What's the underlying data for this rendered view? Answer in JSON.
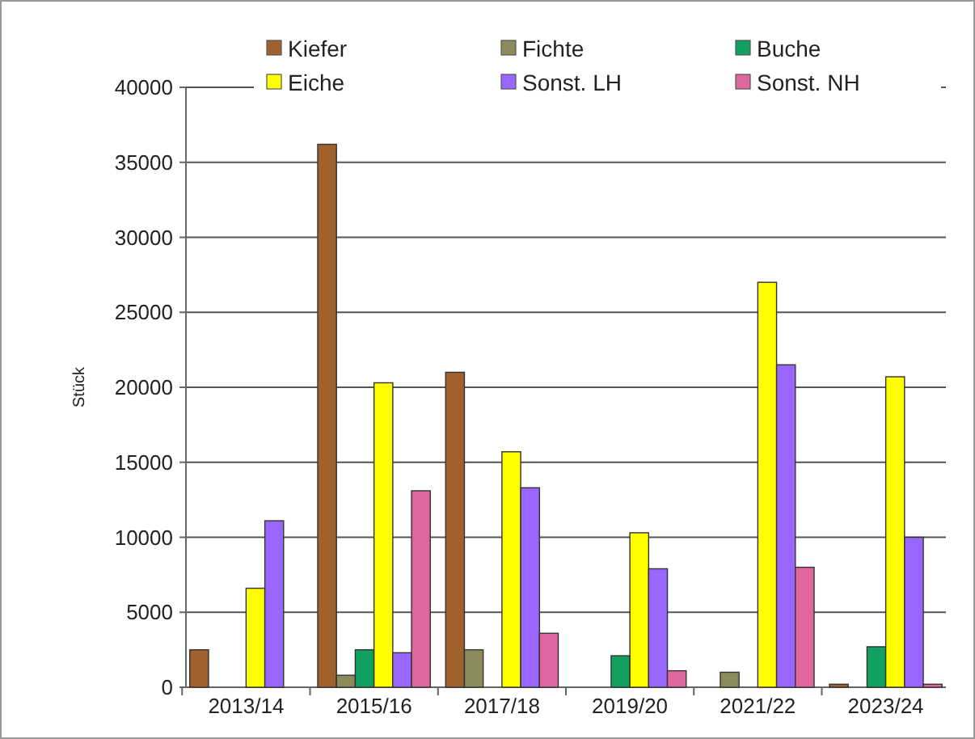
{
  "chart_data": {
    "type": "bar",
    "ylabel": "Stück",
    "categories": [
      "2013/14",
      "2015/16",
      "2017/18",
      "2019/20",
      "2021/22",
      "2023/24"
    ],
    "series": [
      {
        "name": "Kiefer",
        "color": "#a0612d",
        "values": [
          2500,
          36200,
          21000,
          0,
          0,
          200
        ]
      },
      {
        "name": "Fichte",
        "color": "#8c8a5a",
        "values": [
          0,
          800,
          2500,
          0,
          1000,
          0
        ]
      },
      {
        "name": "Buche",
        "color": "#12a060",
        "values": [
          0,
          2500,
          0,
          2100,
          0,
          2700
        ]
      },
      {
        "name": "Eiche",
        "color": "#ffff00",
        "values": [
          6600,
          20300,
          15700,
          10300,
          27000,
          20700
        ]
      },
      {
        "name": "Sonst. LH",
        "color": "#9966ff",
        "values": [
          11100,
          2300,
          13300,
          7900,
          21500,
          10000
        ]
      },
      {
        "name": "Sonst. NH",
        "color": "#e066a0",
        "values": [
          0,
          13100,
          3600,
          1100,
          8000,
          200
        ]
      }
    ],
    "ylim": [
      0,
      40000
    ],
    "yticks": [
      0,
      5000,
      10000,
      15000,
      20000,
      25000,
      30000,
      35000,
      40000
    ],
    "grid": "y",
    "legend": "top"
  }
}
